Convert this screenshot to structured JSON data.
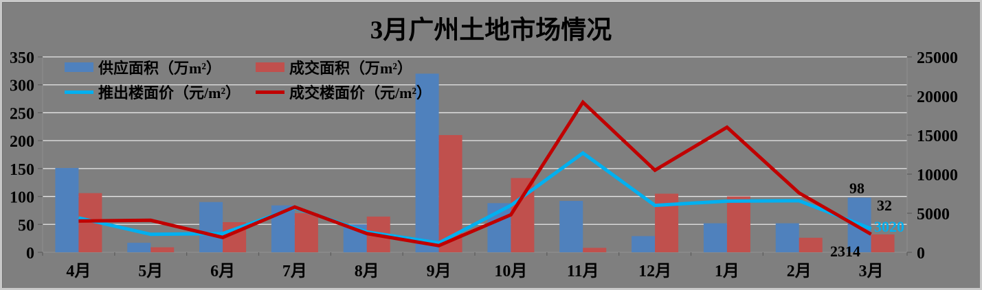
{
  "chart": {
    "title": "3月广州土地市场情况",
    "background": "#7f7f7f",
    "colors": {
      "supply_bar": "#4f81bd",
      "deal_bar": "#c0504d",
      "launch_line": "#00b0f0",
      "deal_line": "#c00000",
      "gridline": "#e8e8e8",
      "axis_line": "#8f8f8f",
      "tick": "#5f5f5f",
      "text": "#000000"
    },
    "chart_data": {
      "type": "bar+line combo",
      "title": "3月广州土地市场情况",
      "categories": [
        "4月",
        "5月",
        "6月",
        "7月",
        "8月",
        "9月",
        "10月",
        "11月",
        "12月",
        "1月",
        "2月",
        "3月"
      ],
      "series": [
        {
          "name": "供应面积（万m²）",
          "type": "bar",
          "axis": "left",
          "color": "#4f81bd",
          "values": [
            151,
            17,
            90,
            84,
            50,
            320,
            88,
            92,
            29,
            52,
            52,
            98
          ]
        },
        {
          "name": "成交面积（万m²）",
          "type": "bar",
          "axis": "left",
          "color": "#c0504d",
          "values": [
            106,
            9,
            54,
            70,
            64,
            210,
            133,
            8,
            105,
            100,
            26,
            32
          ]
        },
        {
          "name": "推出楼面价（元/m²）",
          "type": "line",
          "axis": "right",
          "color": "#00b0f0",
          "values": [
            4400,
            2300,
            2400,
            5700,
            2600,
            1200,
            6000,
            12700,
            6000,
            6550,
            6600,
            3020
          ]
        },
        {
          "name": "成交楼面价（元/m²）",
          "type": "line",
          "axis": "right",
          "color": "#c00000",
          "values": [
            4000,
            4100,
            1900,
            5800,
            2400,
            850,
            4800,
            19200,
            10500,
            16000,
            7600,
            2314
          ]
        }
      ],
      "left_axis": {
        "min": 0,
        "max": 350,
        "step": 50,
        "ticks": [
          "0",
          "50",
          "100",
          "150",
          "200",
          "250",
          "300",
          "350"
        ]
      },
      "right_axis": {
        "min": 0,
        "max": 25000,
        "step": 5000,
        "ticks": [
          "0",
          "5000",
          "10000",
          "15000",
          "20000",
          "25000"
        ]
      },
      "grid": "horizontal",
      "legend_position": "top-left inside plot",
      "annotations": [
        {
          "text": "98",
          "color": "#000000",
          "attached_to": "供应面积 3月"
        },
        {
          "text": "32",
          "color": "#000000",
          "attached_to": "成交面积 3月"
        },
        {
          "text": "3020",
          "color": "#00b0f0",
          "attached_to": "推出楼面价 3月"
        },
        {
          "text": "2314",
          "color": "#000000",
          "attached_to": "成交楼面价 3月"
        }
      ]
    }
  }
}
